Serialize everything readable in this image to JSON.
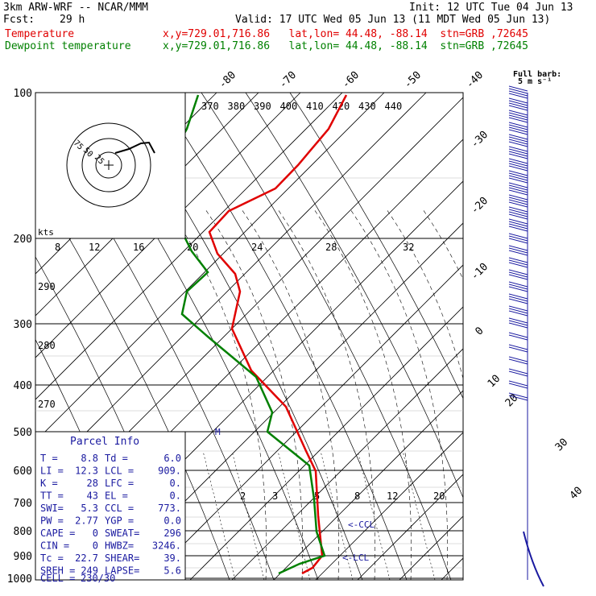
{
  "header": {
    "model": "3km ARW-WRF -- NCAR/MMM",
    "init": "Init: 12 UTC Tue 04 Jun 13",
    "fcst_label": "Fcst:",
    "fcst_value": "29 h",
    "valid": "Valid: 17 UTC Wed 05 Jun 13 (11 MDT Wed 05 Jun 13)",
    "temperature_label": "Temperature",
    "temperature_loc": "x,y=729.01,716.86   lat,lon= 44.48, -88.14  stn=GRB ,72645",
    "dewpoint_label": "Dewpoint temperature",
    "dewpoint_loc": "x,y=729.01,716.86   lat,lon= 44.48, -88.14  stn=GRB ,72645"
  },
  "colors": {
    "temperature": "#e00000",
    "dewpoint": "#008000",
    "parcel_text": "#1a1aa0",
    "barb": "#1a1aa0"
  },
  "pressure_levels": [
    "100",
    "200",
    "300",
    "400",
    "500",
    "600",
    "700",
    "800",
    "900",
    "1000"
  ],
  "top_isotherm_labels": [
    "-80",
    "-70",
    "-60",
    "-50",
    "-40"
  ],
  "right_isotherm_labels": [
    "-30",
    "-20",
    "-10",
    "0",
    "10",
    "20",
    "30",
    "40"
  ],
  "theta_labels": [
    "370",
    "380",
    "390",
    "400",
    "410",
    "420",
    "430",
    "440"
  ],
  "hodograph_speed_labels": [
    "8",
    "12",
    "16",
    "20",
    "24",
    "28",
    "32"
  ],
  "hodograph_ring_labels": [
    "75",
    "50",
    "25"
  ],
  "mixing_ratio_labels": [
    "2",
    "3",
    "5",
    "8",
    "12",
    "20"
  ],
  "kts_label": "kts",
  "left_theta_labels": [
    "290",
    "280",
    "270"
  ],
  "barb_header": "Full barb:",
  "barb_unit": "5 m s⁻¹",
  "lcl_label": "<-LCL",
  "ccl_label": "<-CCL",
  "storm_motion_label": "M",
  "parcel_info": {
    "title": "Parcel Info",
    "rows": [
      [
        "T  =",
        "8.8",
        "Td =",
        "6.0"
      ],
      [
        "LI =",
        "12.3",
        "LCL =",
        "909."
      ],
      [
        "K  =",
        "28",
        "LFC =",
        "0."
      ],
      [
        "TT =",
        "43",
        "EL  =",
        "0."
      ],
      [
        "SWI=",
        "5.3",
        "CCL =",
        "773."
      ],
      [
        "PW =",
        "2.77",
        "YGP =",
        "0.0"
      ],
      [
        "CAPE =",
        "0",
        "SWEAT=",
        "296"
      ],
      [
        "CIN  =",
        "0",
        "HWBZ=",
        "3246."
      ],
      [
        "Tc   =",
        "22.7",
        "SHEAR=",
        "39."
      ],
      [
        "SREH =",
        "249",
        "LAPSE=",
        "5.6"
      ]
    ],
    "cell_label": "CELL =",
    "cell_value": "230/30"
  }
}
